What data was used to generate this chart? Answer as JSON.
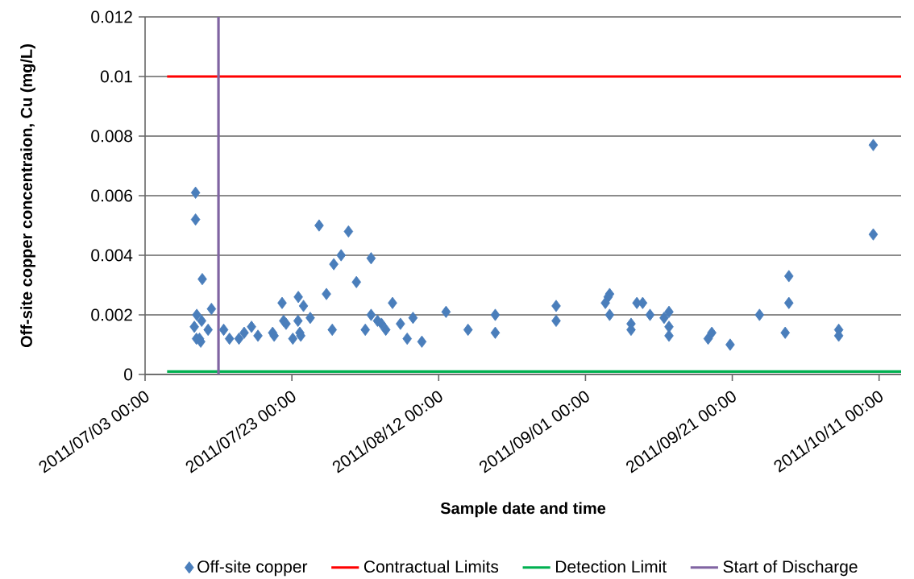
{
  "chart_data": {
    "type": "scatter",
    "xlabel": "Sample date and time",
    "ylabel": "Off-site copper concentraion, Cu (mg/L)",
    "xlim": [
      "2011-07-03",
      "2011-10-14"
    ],
    "xticks": [
      {
        "value": "2011-07-03",
        "label": "2011/07/03 00:00"
      },
      {
        "value": "2011-07-23",
        "label": "2011/07/23 00:00"
      },
      {
        "value": "2011-08-12",
        "label": "2011/08/12 00:00"
      },
      {
        "value": "2011-09-01",
        "label": "2011/09/01 00:00"
      },
      {
        "value": "2011-09-21",
        "label": "2011/09/21 00:00"
      },
      {
        "value": "2011-10-11",
        "label": "2011/10/11 00:00"
      }
    ],
    "ylim": [
      0,
      0.012
    ],
    "yticks": [
      0,
      0.002,
      0.004,
      0.006,
      0.008,
      0.01,
      0.012
    ],
    "grid": "y",
    "legend": "bottom",
    "series": [
      {
        "name": "Off-site copper",
        "marker": "diamond",
        "color": "#4a7ebb",
        "x": [
          "2011-07-09T21:00",
          "2011-07-09T21:00",
          "2011-07-10T19:00",
          "2011-07-12T01:00",
          "2011-07-10T01:00",
          "2011-07-09T17:00",
          "2011-07-10T17:00",
          "2011-07-11T14:00",
          "2011-07-10T10:00",
          "2011-07-10T14:00",
          "2011-07-10T00:00",
          "2011-07-13T17:00",
          "2011-07-14T12:00",
          "2011-07-15T19:00",
          "2011-07-17T12:00",
          "2011-07-16T12:00",
          "2011-07-18T09:00",
          "2011-07-20T09:00",
          "2011-07-20T14:00",
          "2011-07-21T16:00",
          "2011-07-21T21:00",
          "2011-07-22T05:00",
          "2011-07-23T03:00",
          "2011-07-23T21:00",
          "2011-07-24T14:00",
          "2011-07-23T20:00",
          "2011-07-24T02:00",
          "2011-07-24T05:00",
          "2011-07-25T12:00",
          "2011-07-26T17:00",
          "2011-07-30T17:00",
          "2011-07-29T17:00",
          "2011-07-28T17:00",
          "2011-08-02T19:00",
          "2011-07-31T19:00",
          "2011-07-27T17:00",
          "2011-07-28T12:00",
          "2011-08-02T00:00",
          "2011-08-02T19:00",
          "2011-08-03T16:00",
          "2011-08-04T19:00",
          "2011-08-04T05:00",
          "2011-08-05T17:00",
          "2011-08-06T19:00",
          "2011-08-08T12:00",
          "2011-08-07T17:00",
          "2011-08-09T17:00",
          "2011-08-13T00:00",
          "2011-08-16T00:00",
          "2011-08-19T17:00",
          "2011-08-19T17:00",
          "2011-08-28T00:00",
          "2011-08-28T00:00",
          "2011-09-04T07:00",
          "2011-09-04T02:00",
          "2011-09-03T17:00",
          "2011-09-04T07:00",
          "2011-09-07T05:00",
          "2011-09-07T05:00",
          "2011-09-08T00:00",
          "2011-09-08T19:00",
          "2011-09-09T19:00",
          "2011-09-11T17:00",
          "2011-09-12T09:00",
          "2011-09-12T09:00",
          "2011-09-12T09:00",
          "2011-09-17T17:00",
          "2011-09-18T05:00",
          "2011-09-20T17:00",
          "2011-09-24T17:00",
          "2011-09-28T17:00",
          "2011-09-28T17:00",
          "2011-09-28T05:00",
          "2011-10-05T12:00",
          "2011-10-05T12:00",
          "2011-10-10T05:00",
          "2011-10-10T05:00"
        ],
        "values": [
          0.0061,
          0.0052,
          0.0032,
          0.0022,
          0.002,
          0.0016,
          0.0018,
          0.0015,
          0.0012,
          0.0011,
          0.0012,
          0.0015,
          0.0012,
          0.0012,
          0.0016,
          0.0014,
          0.0013,
          0.0014,
          0.0013,
          0.0024,
          0.0018,
          0.0017,
          0.0012,
          0.0026,
          0.0023,
          0.0018,
          0.0014,
          0.0013,
          0.0019,
          0.005,
          0.0048,
          0.004,
          0.0037,
          0.0039,
          0.0031,
          0.0027,
          0.0015,
          0.0015,
          0.002,
          0.0018,
          0.0015,
          0.0017,
          0.0024,
          0.0017,
          0.0019,
          0.0012,
          0.0011,
          0.0021,
          0.0015,
          0.002,
          0.0014,
          0.0023,
          0.0018,
          0.0027,
          0.0026,
          0.0024,
          0.002,
          0.0017,
          0.0015,
          0.0024,
          0.0024,
          0.002,
          0.0019,
          0.0021,
          0.0016,
          0.0013,
          0.0012,
          0.0014,
          0.001,
          0.002,
          0.0033,
          0.0024,
          0.0014,
          0.0015,
          0.0013,
          0.0077,
          0.0047
        ]
      },
      {
        "name": "Contractual Limits",
        "type": "line",
        "color": "#ff0000",
        "marker": "none",
        "line_style": "solid",
        "x": [
          "2011-07-06",
          "2011-10-14"
        ],
        "values": [
          0.01,
          0.01
        ]
      },
      {
        "name": "Detection Limit",
        "type": "line",
        "color": "#00b050",
        "marker": "none",
        "line_style": "solid",
        "x": [
          "2011-07-06",
          "2011-10-14"
        ],
        "values": [
          0.0001,
          0.0001
        ]
      },
      {
        "name": "Start of Discharge",
        "type": "line",
        "color": "#8064a2",
        "marker": "none",
        "line_style": "solid",
        "x": [
          "2011-07-13",
          "2011-07-13"
        ],
        "values": [
          0,
          0.012
        ]
      }
    ]
  }
}
